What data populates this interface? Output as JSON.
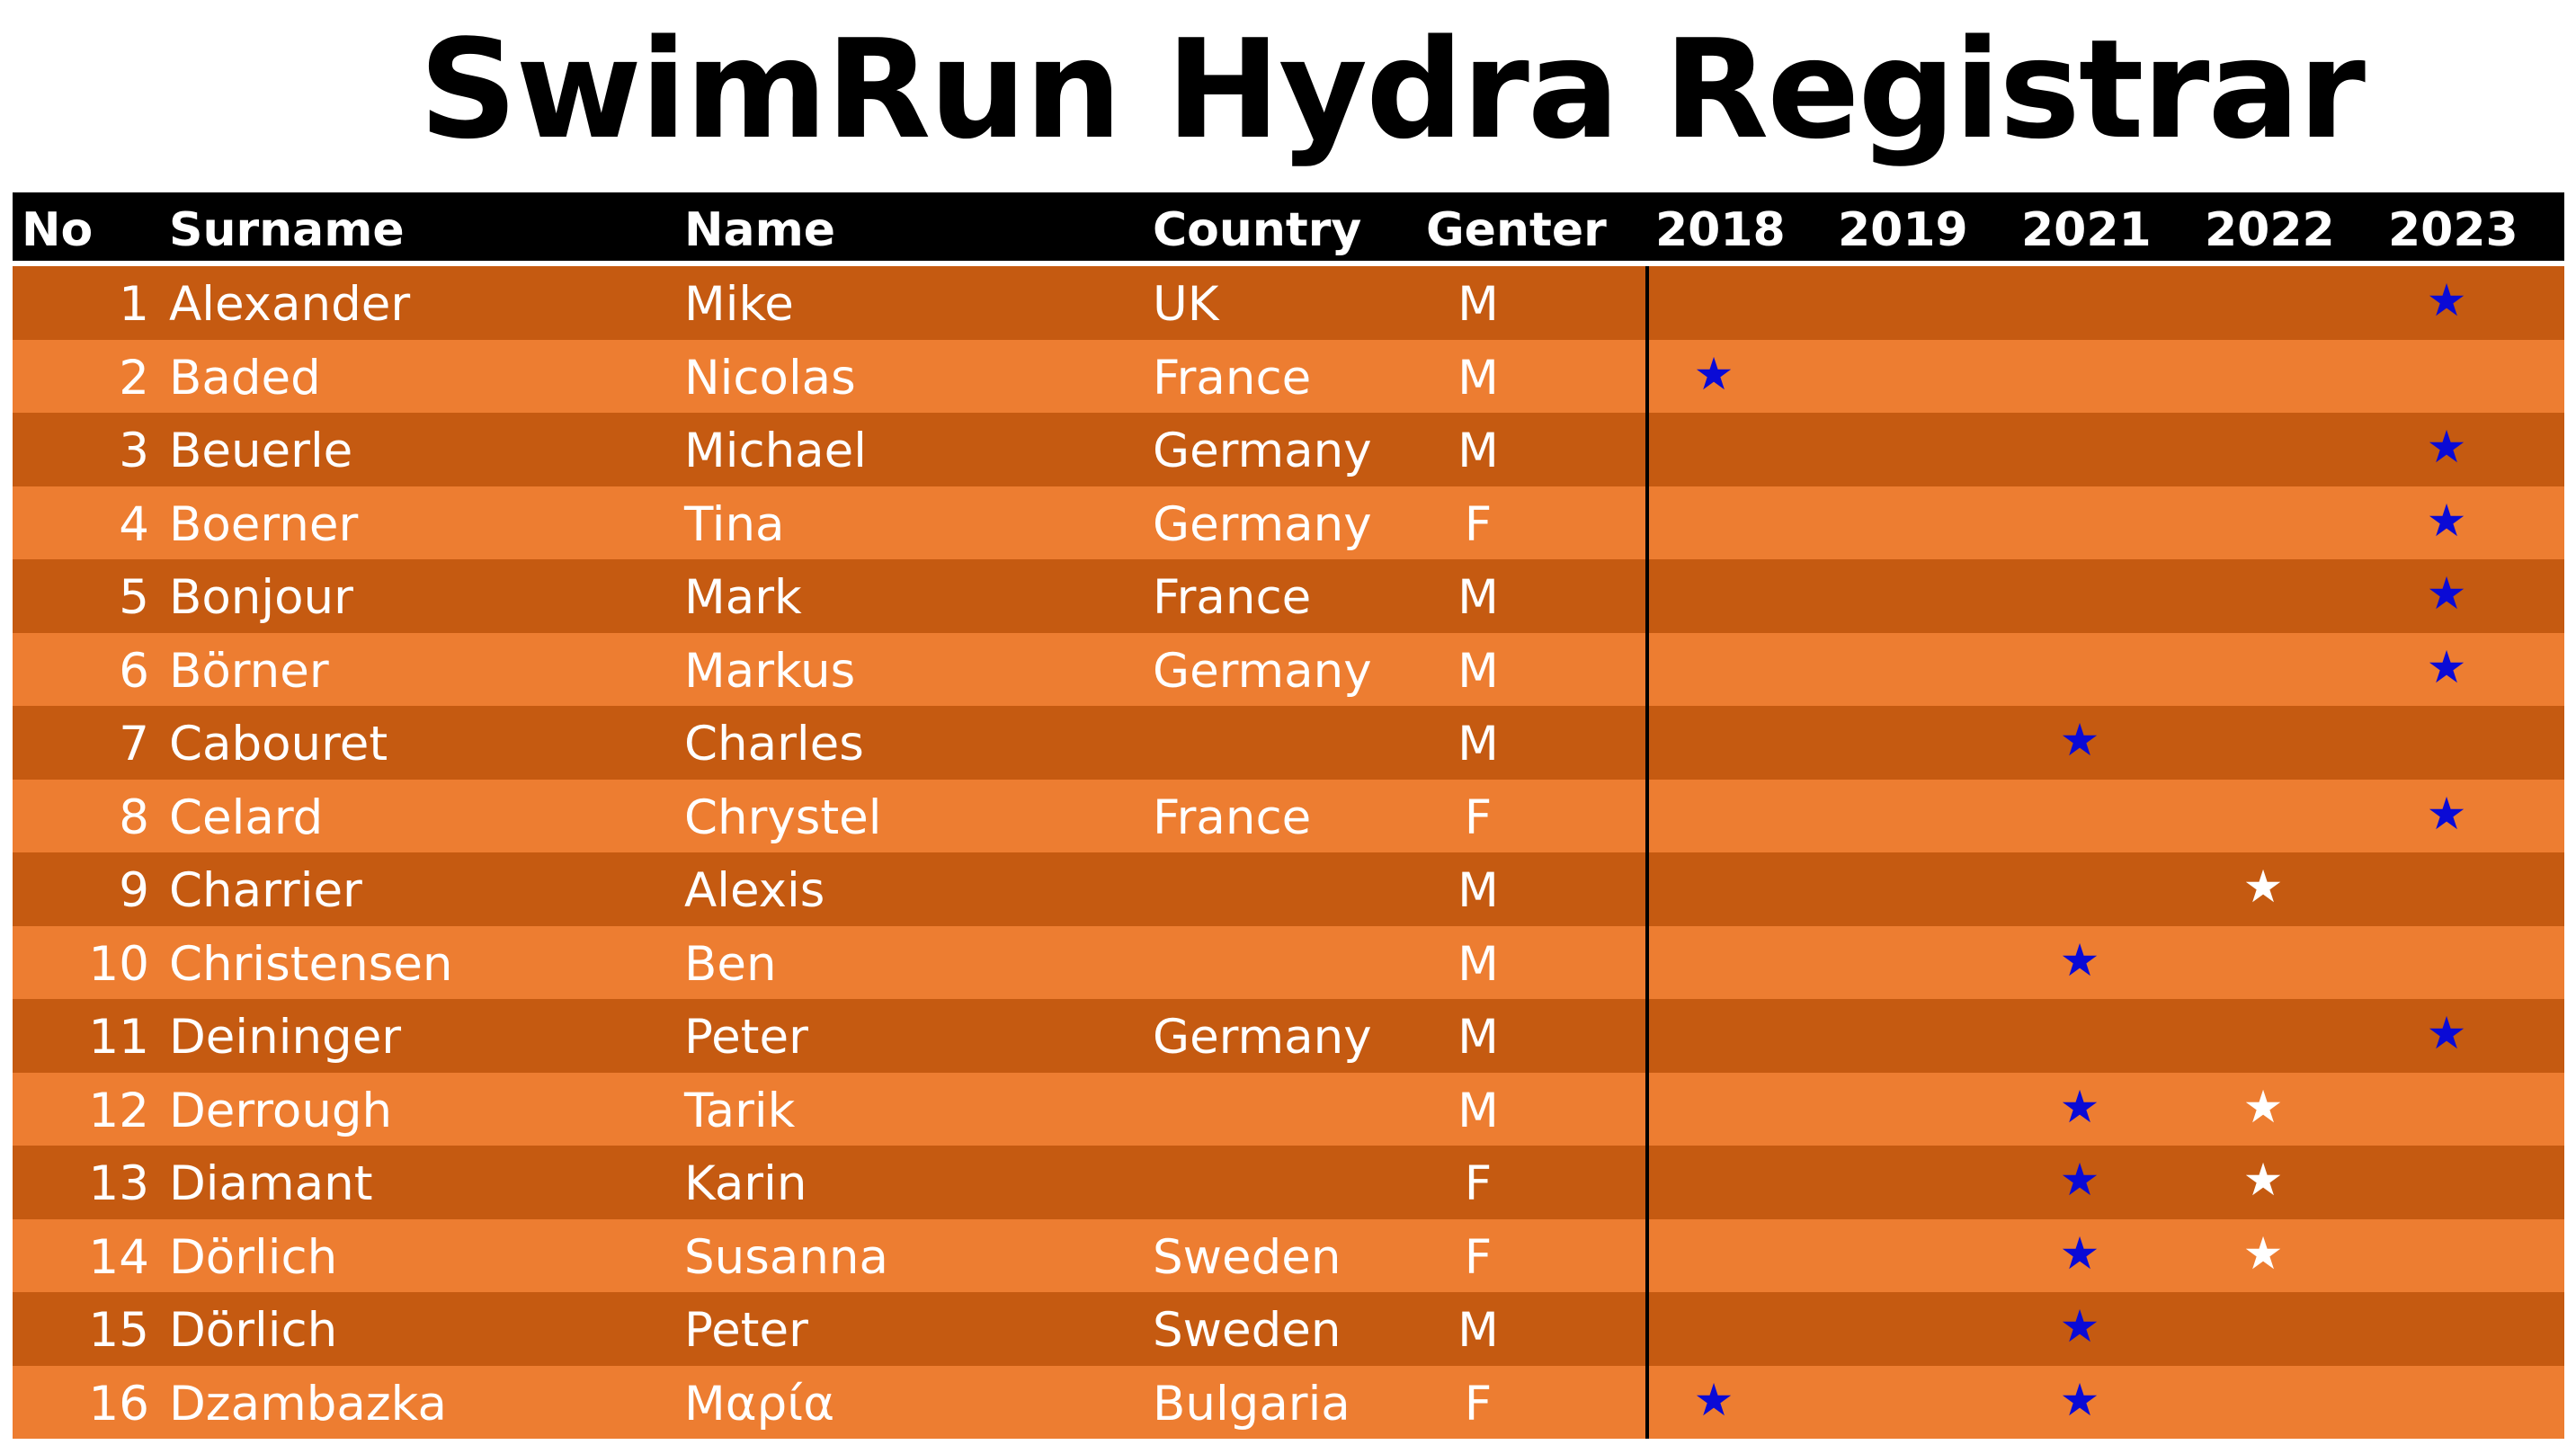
{
  "title": "SwimRun Hydra Registrar",
  "colors": {
    "header_bg": "#000000",
    "row_dark": "#c55a11",
    "row_light": "#ed7d31",
    "star_blue": "#0a0ad6",
    "star_white": "#ffffff"
  },
  "columns": {
    "no": "No",
    "surname": "Surname",
    "name": "Name",
    "country": "Country",
    "gender": "Genter",
    "years": [
      "2018",
      "2019",
      "2021",
      "2022",
      "2023"
    ]
  },
  "star_glyph": "★",
  "rows": [
    {
      "no": "1",
      "surname": "Alexander",
      "name": "Mike",
      "country": "UK",
      "gender": "M",
      "stars": {
        "2023": "blue"
      }
    },
    {
      "no": "2",
      "surname": "Baded",
      "name": "Nicolas",
      "country": "France",
      "gender": "M",
      "stars": {
        "2018": "blue"
      }
    },
    {
      "no": "3",
      "surname": "Beuerle",
      "name": "Michael",
      "country": "Germany",
      "gender": "M",
      "stars": {
        "2023": "blue"
      }
    },
    {
      "no": "4",
      "surname": "Boerner",
      "name": "Tina",
      "country": "Germany",
      "gender": "F",
      "stars": {
        "2023": "blue"
      }
    },
    {
      "no": "5",
      "surname": "Bonjour",
      "name": "Mark",
      "country": "France",
      "gender": "M",
      "stars": {
        "2023": "blue"
      }
    },
    {
      "no": "6",
      "surname": "Börner",
      "name": "Markus",
      "country": "Germany",
      "gender": "M",
      "stars": {
        "2023": "blue"
      }
    },
    {
      "no": "7",
      "surname": "Cabouret",
      "name": "Charles",
      "country": "",
      "gender": "M",
      "stars": {
        "2021": "blue"
      }
    },
    {
      "no": "8",
      "surname": "Celard",
      "name": "Chrystel",
      "country": "France",
      "gender": "F",
      "stars": {
        "2023": "blue"
      }
    },
    {
      "no": "9",
      "surname": "Charrier",
      "name": "Alexis",
      "country": "",
      "gender": "M",
      "stars": {
        "2022": "white"
      }
    },
    {
      "no": "10",
      "surname": "Christensen",
      "name": "Ben",
      "country": "",
      "gender": "M",
      "stars": {
        "2021": "blue"
      }
    },
    {
      "no": "11",
      "surname": "Deininger",
      "name": "Peter",
      "country": "Germany",
      "gender": "M",
      "stars": {
        "2023": "blue"
      }
    },
    {
      "no": "12",
      "surname": "Derrough",
      "name": "Tarik",
      "country": "",
      "gender": "M",
      "stars": {
        "2021": "blue",
        "2022": "white"
      }
    },
    {
      "no": "13",
      "surname": "Diamant",
      "name": "Karin",
      "country": "",
      "gender": "F",
      "stars": {
        "2021": "blue",
        "2022": "white"
      }
    },
    {
      "no": "14",
      "surname": "Dörlich",
      "name": "Susanna",
      "country": "Sweden",
      "gender": "F",
      "stars": {
        "2021": "blue",
        "2022": "white"
      }
    },
    {
      "no": "15",
      "surname": "Dörlich",
      "name": "Peter",
      "country": "Sweden",
      "gender": "M",
      "stars": {
        "2021": "blue"
      }
    },
    {
      "no": "16",
      "surname": "Dzambazka",
      "name": "Μαρία",
      "country": "Bulgaria",
      "gender": "F",
      "stars": {
        "2018": "blue",
        "2021": "blue"
      }
    }
  ]
}
